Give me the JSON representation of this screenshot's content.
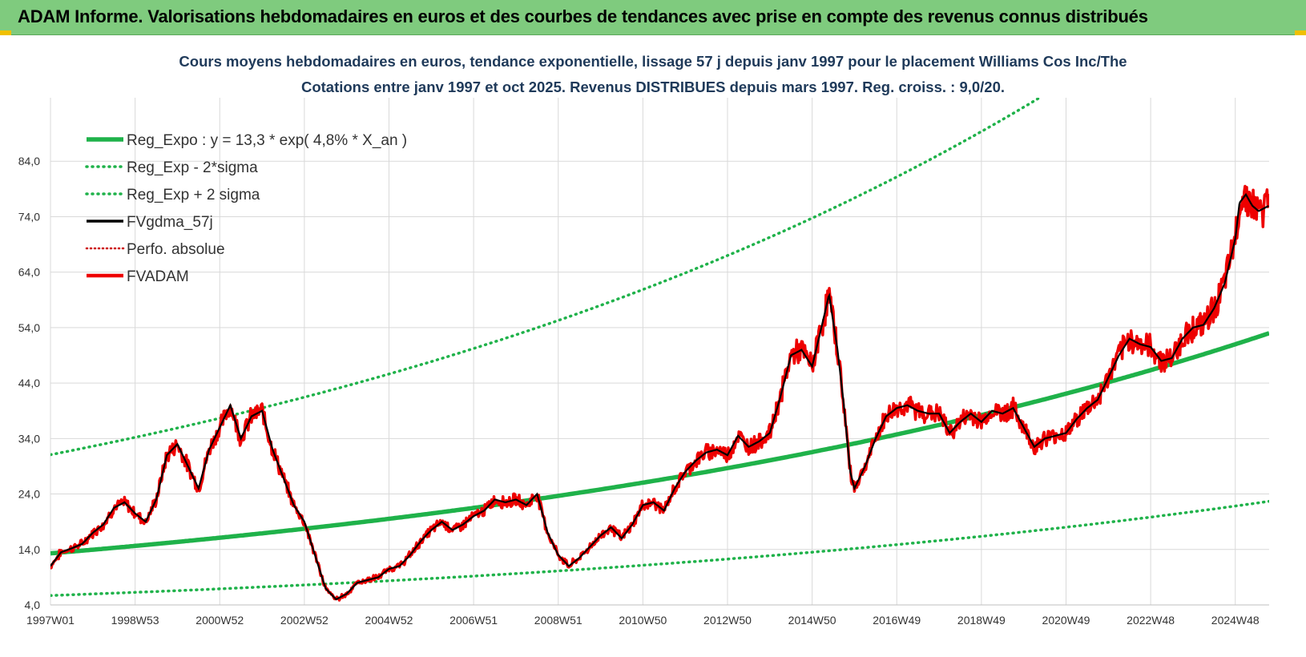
{
  "banner": {
    "title": "ADAM Informe. Valorisations hebdomadaires en euros et des courbes de tendances avec prise en compte des revenus connus distribués"
  },
  "colors": {
    "banner_bg": "#7fcb7e",
    "regression": "#1fb24a",
    "smoothed": "#000000",
    "price": "#ee0000",
    "perf": "#cc0000",
    "grid": "#d9d9d9",
    "title_text": "#1f3a5a"
  },
  "chart_data": {
    "type": "line",
    "title_line1": "Cours moyens hebdomadaires en euros, tendance exponentielle, lissage 57 j depuis janv 1997 pour le placement Williams Cos Inc/The",
    "title_line2": "Cotations entre janv 1997 et oct 2025. Revenus DISTRIBUES depuis mars 1997.  Reg. croiss. : 9,0/20.",
    "xlabel": "",
    "ylabel": "",
    "ylim": [
      4,
      94
    ],
    "xlim": [
      1997.0,
      2025.8
    ],
    "grid": true,
    "legend_position": "top-left",
    "y_ticks": [
      "4,0",
      "14,0",
      "24,0",
      "34,0",
      "44,0",
      "54,0",
      "64,0",
      "74,0",
      "84,0"
    ],
    "y_tick_values": [
      4,
      14,
      24,
      34,
      44,
      54,
      64,
      74,
      84
    ],
    "x_ticks": [
      "1997W01",
      "1998W53",
      "2000W52",
      "2002W52",
      "2004W52",
      "2006W51",
      "2008W51",
      "2010W50",
      "2012W50",
      "2014W50",
      "2016W49",
      "2018W49",
      "2020W49",
      "2022W48",
      "2024W48"
    ],
    "x_tick_values": [
      1997.0,
      1999.0,
      2001.0,
      2003.0,
      2005.0,
      2007.0,
      2009.0,
      2011.0,
      2013.0,
      2015.0,
      2017.0,
      2019.0,
      2021.0,
      2023.0,
      2025.0
    ],
    "regression": {
      "a": 13.3,
      "rate": 0.048
    },
    "series": [
      {
        "name": "Reg_Expo : y = 13,3 * exp( 4,8% *  X_an )",
        "style": "solid-thick",
        "color": "#1fb24a"
      },
      {
        "name": "Reg_Exp - 2*sigma",
        "style": "dotted",
        "color": "#1fb24a",
        "multiplier": 0.428
      },
      {
        "name": "Reg_Exp + 2 sigma",
        "style": "dotted",
        "color": "#1fb24a",
        "multiplier": 2.337
      },
      {
        "name": "FVgdma_57j",
        "style": "solid",
        "color": "#000000"
      },
      {
        "name": "Perfo. absolue",
        "style": "dotted",
        "color": "#cc0000"
      },
      {
        "name": "FVADAM",
        "style": "solid-thick",
        "color": "#ee0000"
      }
    ],
    "price_points": [
      [
        1997.0,
        11.0
      ],
      [
        1997.25,
        13.5
      ],
      [
        1997.5,
        14.2
      ],
      [
        1997.75,
        15.0
      ],
      [
        1998.0,
        17.0
      ],
      [
        1998.25,
        18.5
      ],
      [
        1998.5,
        21.5
      ],
      [
        1998.75,
        22.5
      ],
      [
        1999.0,
        20.5
      ],
      [
        1999.25,
        19.0
      ],
      [
        1999.5,
        23.0
      ],
      [
        1999.75,
        31.0
      ],
      [
        2000.0,
        33.0
      ],
      [
        2000.25,
        29.0
      ],
      [
        2000.5,
        25.0
      ],
      [
        2000.75,
        32.0
      ],
      [
        2001.0,
        36.0
      ],
      [
        2001.25,
        40.0
      ],
      [
        2001.5,
        34.0
      ],
      [
        2001.75,
        38.0
      ],
      [
        2002.0,
        39.0
      ],
      [
        2002.25,
        32.0
      ],
      [
        2002.5,
        27.0
      ],
      [
        2002.75,
        22.0
      ],
      [
        2003.0,
        19.0
      ],
      [
        2003.25,
        13.0
      ],
      [
        2003.5,
        7.0
      ],
      [
        2003.75,
        5.0
      ],
      [
        2004.0,
        6.0
      ],
      [
        2004.25,
        8.0
      ],
      [
        2004.5,
        8.5
      ],
      [
        2004.75,
        9.0
      ],
      [
        2005.0,
        10.5
      ],
      [
        2005.25,
        11.0
      ],
      [
        2005.5,
        13.0
      ],
      [
        2005.75,
        15.5
      ],
      [
        2006.0,
        17.5
      ],
      [
        2006.25,
        19.0
      ],
      [
        2006.5,
        17.5
      ],
      [
        2006.75,
        18.5
      ],
      [
        2007.0,
        20.0
      ],
      [
        2007.25,
        21.0
      ],
      [
        2007.5,
        23.0
      ],
      [
        2007.75,
        22.5
      ],
      [
        2008.0,
        23.0
      ],
      [
        2008.25,
        22.0
      ],
      [
        2008.5,
        24.0
      ],
      [
        2008.75,
        17.0
      ],
      [
        2009.0,
        13.0
      ],
      [
        2009.25,
        11.0
      ],
      [
        2009.5,
        12.5
      ],
      [
        2009.75,
        14.5
      ],
      [
        2010.0,
        16.5
      ],
      [
        2010.25,
        18.0
      ],
      [
        2010.5,
        16.0
      ],
      [
        2010.75,
        18.5
      ],
      [
        2011.0,
        22.0
      ],
      [
        2011.25,
        22.5
      ],
      [
        2011.5,
        21.0
      ],
      [
        2011.75,
        25.0
      ],
      [
        2012.0,
        28.0
      ],
      [
        2012.25,
        30.0
      ],
      [
        2012.5,
        31.5
      ],
      [
        2012.75,
        32.0
      ],
      [
        2013.0,
        31.0
      ],
      [
        2013.25,
        34.5
      ],
      [
        2013.5,
        32.5
      ],
      [
        2013.75,
        33.5
      ],
      [
        2014.0,
        35.0
      ],
      [
        2014.25,
        41.5
      ],
      [
        2014.5,
        49.0
      ],
      [
        2014.75,
        50.0
      ],
      [
        2015.0,
        47.0
      ],
      [
        2015.25,
        55.0
      ],
      [
        2015.4,
        60.0
      ],
      [
        2015.6,
        50.0
      ],
      [
        2015.75,
        40.0
      ],
      [
        2015.9,
        28.0
      ],
      [
        2016.0,
        25.0
      ],
      [
        2016.25,
        29.0
      ],
      [
        2016.5,
        34.0
      ],
      [
        2016.75,
        38.0
      ],
      [
        2017.0,
        39.5
      ],
      [
        2017.25,
        40.0
      ],
      [
        2017.5,
        39.0
      ],
      [
        2017.75,
        38.5
      ],
      [
        2018.0,
        38.5
      ],
      [
        2018.25,
        35.0
      ],
      [
        2018.5,
        37.0
      ],
      [
        2018.75,
        38.5
      ],
      [
        2019.0,
        37.0
      ],
      [
        2019.25,
        39.0
      ],
      [
        2019.5,
        38.5
      ],
      [
        2019.75,
        39.5
      ],
      [
        2020.0,
        36.0
      ],
      [
        2020.25,
        32.5
      ],
      [
        2020.5,
        34.0
      ],
      [
        2020.75,
        34.5
      ],
      [
        2021.0,
        35.0
      ],
      [
        2021.25,
        37.5
      ],
      [
        2021.5,
        39.5
      ],
      [
        2021.75,
        41.0
      ],
      [
        2022.0,
        45.0
      ],
      [
        2022.25,
        49.0
      ],
      [
        2022.5,
        52.0
      ],
      [
        2022.75,
        51.0
      ],
      [
        2023.0,
        50.5
      ],
      [
        2023.25,
        48.0
      ],
      [
        2023.5,
        48.5
      ],
      [
        2023.75,
        52.0
      ],
      [
        2024.0,
        54.0
      ],
      [
        2024.25,
        54.5
      ],
      [
        2024.5,
        57.5
      ],
      [
        2024.75,
        62.0
      ],
      [
        2025.0,
        70.0
      ],
      [
        2025.1,
        76.5
      ],
      [
        2025.25,
        78.0
      ],
      [
        2025.4,
        76.0
      ],
      [
        2025.55,
        75.0
      ],
      [
        2025.8,
        76.0
      ]
    ]
  }
}
